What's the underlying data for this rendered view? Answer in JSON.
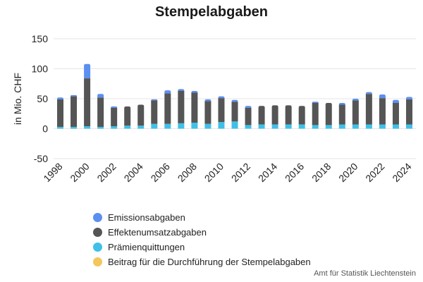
{
  "chart_data": {
    "type": "bar",
    "stacked": true,
    "title": "Stempelabgaben",
    "xlabel": "",
    "ylabel": "in Mio. CHF",
    "ylim": [
      -50,
      150
    ],
    "yticks": [
      -50,
      0,
      50,
      100,
      150
    ],
    "grid": true,
    "legend_position": "bottom-left",
    "categories": [
      "1998",
      "1999",
      "2000",
      "2001",
      "2002",
      "2003",
      "2004",
      "2005",
      "2006",
      "2007",
      "2008",
      "2009",
      "2010",
      "2011",
      "2012",
      "2013",
      "2014",
      "2015",
      "2016",
      "2017",
      "2018",
      "2019",
      "2020",
      "2021",
      "2022",
      "2023",
      "2024"
    ],
    "xtick_labels": [
      "1998",
      "2000",
      "2002",
      "2004",
      "2006",
      "2008",
      "2010",
      "2012",
      "2014",
      "2016",
      "2018",
      "2020",
      "2022",
      "2024"
    ],
    "series": [
      {
        "name": "Beitrag für die Durchführung der Stempelabgaben",
        "color": "#f5c65c",
        "values": [
          0,
          0,
          0,
          0,
          0,
          0,
          0,
          0,
          0,
          0,
          0,
          0,
          0,
          0,
          0,
          0,
          0,
          0,
          0,
          0,
          0,
          0,
          0,
          0,
          0,
          0,
          0
        ]
      },
      {
        "name": "Prämienquittungen",
        "color": "#3fc0e8",
        "values": [
          3,
          3,
          4,
          3,
          4,
          5,
          5,
          8,
          8,
          9,
          10,
          8,
          11,
          12,
          6,
          7,
          7,
          7,
          7,
          6,
          6,
          7,
          7,
          7,
          7,
          7,
          7
        ]
      },
      {
        "name": "Effektenumsatzabgaben",
        "color": "#555555",
        "values": [
          46,
          51,
          80,
          49,
          31,
          32,
          35,
          39,
          51,
          54,
          50,
          38,
          40,
          33,
          29,
          31,
          32,
          32,
          31,
          37,
          37,
          33,
          40,
          51,
          44,
          36,
          42
        ]
      },
      {
        "name": "Emissionsabgaben",
        "color": "#5b8ff0",
        "values": [
          3,
          2,
          24,
          6,
          2,
          0,
          0,
          2,
          5,
          3,
          3,
          3,
          3,
          3,
          3,
          0,
          0,
          0,
          0,
          2,
          0,
          3,
          3,
          3,
          6,
          5,
          4
        ]
      }
    ]
  },
  "legend_order": [
    {
      "label": "Emissionsabgaben",
      "color": "#5b8ff0"
    },
    {
      "label": "Effektenumsatzabgaben",
      "color": "#555555"
    },
    {
      "label": "Prämienquittungen",
      "color": "#3fc0e8"
    },
    {
      "label": "Beitrag für die Durchführung der Stempelabgaben",
      "color": "#f5c65c"
    }
  ],
  "source": "Amt für Statistik Liechtenstein"
}
